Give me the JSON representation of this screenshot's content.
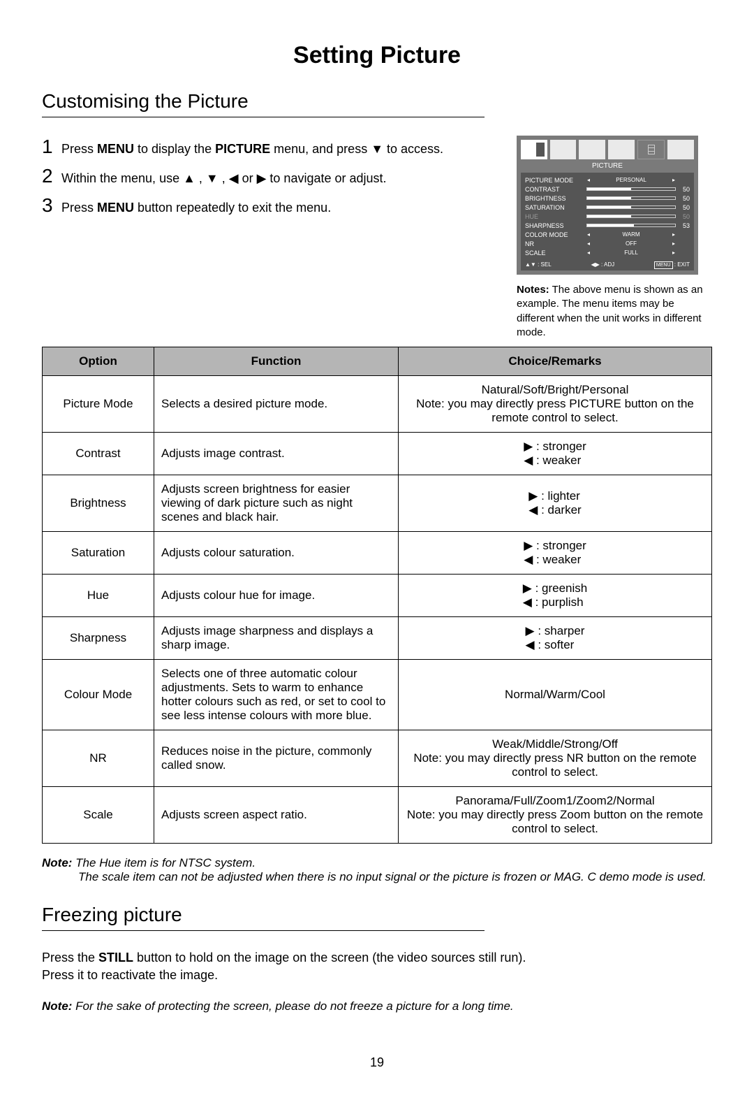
{
  "page": {
    "title": "Setting Picture",
    "number": "19"
  },
  "section1": {
    "title": "Customising the Picture",
    "steps": [
      {
        "num": "1",
        "html": "Press <b>MENU</b> to display the <b>PICTURE</b> menu, and press ▼ to access."
      },
      {
        "num": "2",
        "html": "Within the menu, use ▲ , ▼ , ◀  or ▶  to navigate or adjust."
      },
      {
        "num": "3",
        "html": "Press <b>MENU</b> button repeatedly to exit the menu."
      }
    ]
  },
  "osd": {
    "title": "PICTURE",
    "rows": [
      {
        "label": "PICTURE MODE",
        "type": "sel",
        "value": "PERSONAL"
      },
      {
        "label": "CONTRAST",
        "type": "bar",
        "value": 50,
        "pct": 50
      },
      {
        "label": "BRIGHTNESS",
        "type": "bar",
        "value": 50,
        "pct": 50
      },
      {
        "label": "SATURATION",
        "type": "bar",
        "value": 50,
        "pct": 50
      },
      {
        "label": "HUE",
        "type": "bar",
        "value": 50,
        "pct": 50,
        "greyed": true
      },
      {
        "label": "SHARPNESS",
        "type": "bar",
        "value": 53,
        "pct": 53
      },
      {
        "label": "COLOR MODE",
        "type": "sel",
        "value": "WARM"
      },
      {
        "label": "NR",
        "type": "sel",
        "value": "OFF"
      },
      {
        "label": "SCALE",
        "type": "sel",
        "value": "FULL"
      }
    ],
    "footer": {
      "sel": ": SEL",
      "adj": ": ADJ",
      "menu": "MENU",
      "exit": ": EXIT"
    }
  },
  "osdNotes": "<b>Notes:</b> The above menu is shown as an example. The menu items may be different when the unit works in different mode.",
  "table": {
    "headers": {
      "option": "Option",
      "function": "Function",
      "choice": "Choice/Remarks"
    },
    "rows": [
      {
        "option": "Picture Mode",
        "function": "Selects a desired picture mode.",
        "choice": "Natural/Soft/Bright/Personal<br>Note: you may directly press PICTURE button on the remote control to select.",
        "align": "left"
      },
      {
        "option": "Contrast",
        "function": "Adjusts image contrast.",
        "choice": "▶ : stronger<br>◀ : weaker"
      },
      {
        "option": "Brightness",
        "function": "Adjusts screen brightness for easier viewing of dark picture such as night scenes and black hair.",
        "choice": "▶ : lighter<br>◀ : darker"
      },
      {
        "option": "Saturation",
        "function": "Adjusts colour saturation.",
        "choice": "▶ : stronger<br>◀ : weaker"
      },
      {
        "option": "Hue",
        "function": "Adjusts colour hue for image.",
        "choice": "▶ : greenish<br>◀ : purplish"
      },
      {
        "option": "Sharpness",
        "function": "Adjusts image sharpness and displays a sharp image.",
        "choice": "▶ : sharper<br>◀ : softer"
      },
      {
        "option": "Colour Mode",
        "function": "Selects one of three automatic colour adjustments. Sets to warm to enhance hotter colours such as red, or set to cool to see less intense colours with more blue.",
        "choice": "Normal/Warm/Cool",
        "single": true
      },
      {
        "option": "NR",
        "function": "Reduces noise in the picture, commonly called snow.",
        "choice": "Weak/Middle/Strong/Off<br>Note: you may directly press NR button on the remote control to select.",
        "align": "left-center"
      },
      {
        "option": "Scale",
        "function": "Adjusts screen aspect ratio.",
        "choice": "Panorama/Full/Zoom1/Zoom2/Normal<br>Note: you may directly press Zoom button on the remote control to select.",
        "align": "left-center"
      }
    ]
  },
  "footnote1": "<b>Note:</b> The Hue item is for NTSC system.",
  "footnote2": "The scale item can not be adjusted when there is no input signal or the picture is frozen or MAG. C demo mode is used.",
  "section2": {
    "title": "Freezing picture",
    "body": "Press the <b>STILL</b> button to hold on the image on the screen (the video sources still run).<br>Press it to reactivate the image.",
    "note": "<b>Note:</b> For the sake of protecting the screen, please do not freeze a picture for a long time."
  }
}
